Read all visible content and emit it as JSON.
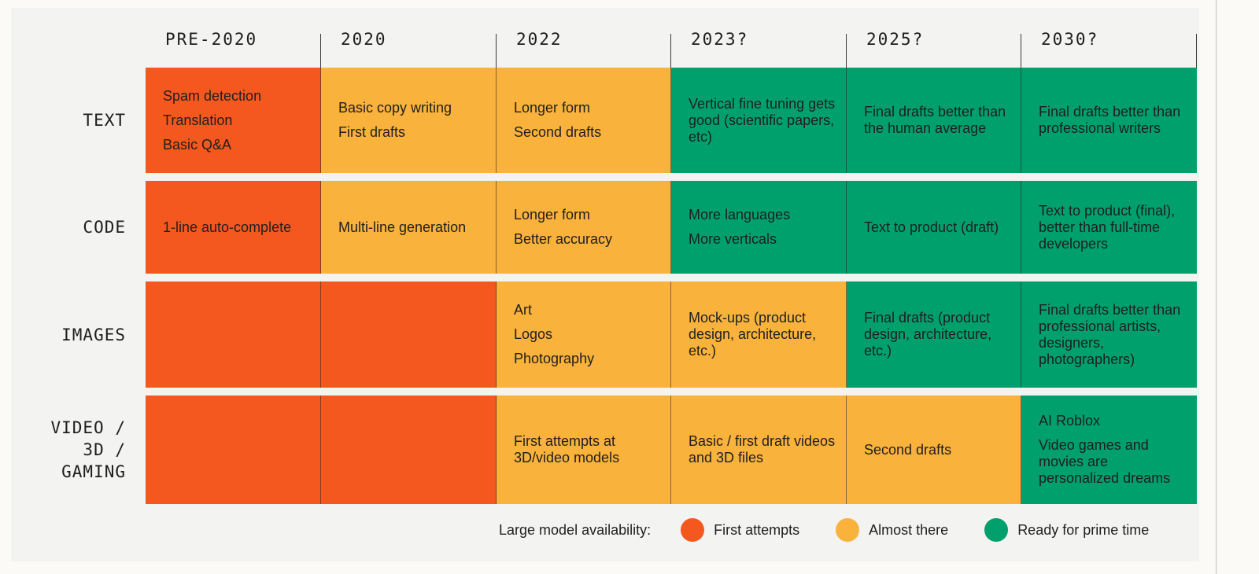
{
  "columns": [
    "PRE-2020",
    "2020",
    "2022",
    "2023?",
    "2025?",
    "2030?"
  ],
  "rows": [
    {
      "label_lines": [
        "TEXT"
      ]
    },
    {
      "label_lines": [
        "CODE"
      ]
    },
    {
      "label_lines": [
        "IMAGES"
      ]
    },
    {
      "label_lines": [
        "VIDEO /",
        "3D /",
        "GAMING"
      ]
    }
  ],
  "cells": [
    [
      {
        "status": "first-attempts",
        "items": [
          "Spam detection",
          "Translation",
          "Basic Q&A"
        ]
      },
      {
        "status": "almost-there",
        "items": [
          "Basic copy writing",
          "First drafts"
        ]
      },
      {
        "status": "almost-there",
        "items": [
          "Longer form",
          "Second drafts"
        ]
      },
      {
        "status": "ready-for-prime-time",
        "items": [
          "Vertical fine tuning gets good (scientific papers, etc)"
        ]
      },
      {
        "status": "ready-for-prime-time",
        "items": [
          "Final drafts better than the human average"
        ]
      },
      {
        "status": "ready-for-prime-time",
        "items": [
          "Final drafts better than professional writers"
        ]
      }
    ],
    [
      {
        "status": "first-attempts",
        "items": [
          "1-line auto-complete"
        ]
      },
      {
        "status": "almost-there",
        "items": [
          "Multi-line generation"
        ]
      },
      {
        "status": "almost-there",
        "items": [
          "Longer form",
          "Better accuracy"
        ]
      },
      {
        "status": "ready-for-prime-time",
        "items": [
          "More languages",
          "More verticals"
        ]
      },
      {
        "status": "ready-for-prime-time",
        "items": [
          "Text to product (draft)"
        ]
      },
      {
        "status": "ready-for-prime-time",
        "items": [
          "Text to product (final), better than full-time developers"
        ]
      }
    ],
    [
      {
        "status": "first-attempts",
        "items": []
      },
      {
        "status": "first-attempts",
        "items": []
      },
      {
        "status": "almost-there",
        "items": [
          "Art",
          "Logos",
          "Photography"
        ]
      },
      {
        "status": "almost-there",
        "items": [
          "Mock-ups (product design, architecture, etc.)"
        ]
      },
      {
        "status": "ready-for-prime-time",
        "items": [
          "Final drafts (product design, architecture, etc.)"
        ]
      },
      {
        "status": "ready-for-prime-time",
        "items": [
          "Final drafts better than professional artists, designers, photographers)"
        ]
      }
    ],
    [
      {
        "status": "first-attempts",
        "items": []
      },
      {
        "status": "first-attempts",
        "items": []
      },
      {
        "status": "almost-there",
        "items": [
          "First attempts at 3D/video models"
        ]
      },
      {
        "status": "almost-there",
        "items": [
          "Basic / first draft videos and 3D files"
        ]
      },
      {
        "status": "almost-there",
        "items": [
          "Second drafts"
        ]
      },
      {
        "status": "ready-for-prime-time",
        "items": [
          "AI Roblox",
          "Video games and movies are personalized dreams"
        ]
      }
    ]
  ],
  "legend": {
    "title": "Large model availability:",
    "items": [
      {
        "key": "first-attempts",
        "label": "First attempts",
        "color": "#f4581e"
      },
      {
        "key": "almost-there",
        "label": "Almost there",
        "color": "#f9b23c"
      },
      {
        "key": "ready-for-prime-time",
        "label": "Ready for prime time",
        "color": "#00a06c"
      }
    ]
  }
}
